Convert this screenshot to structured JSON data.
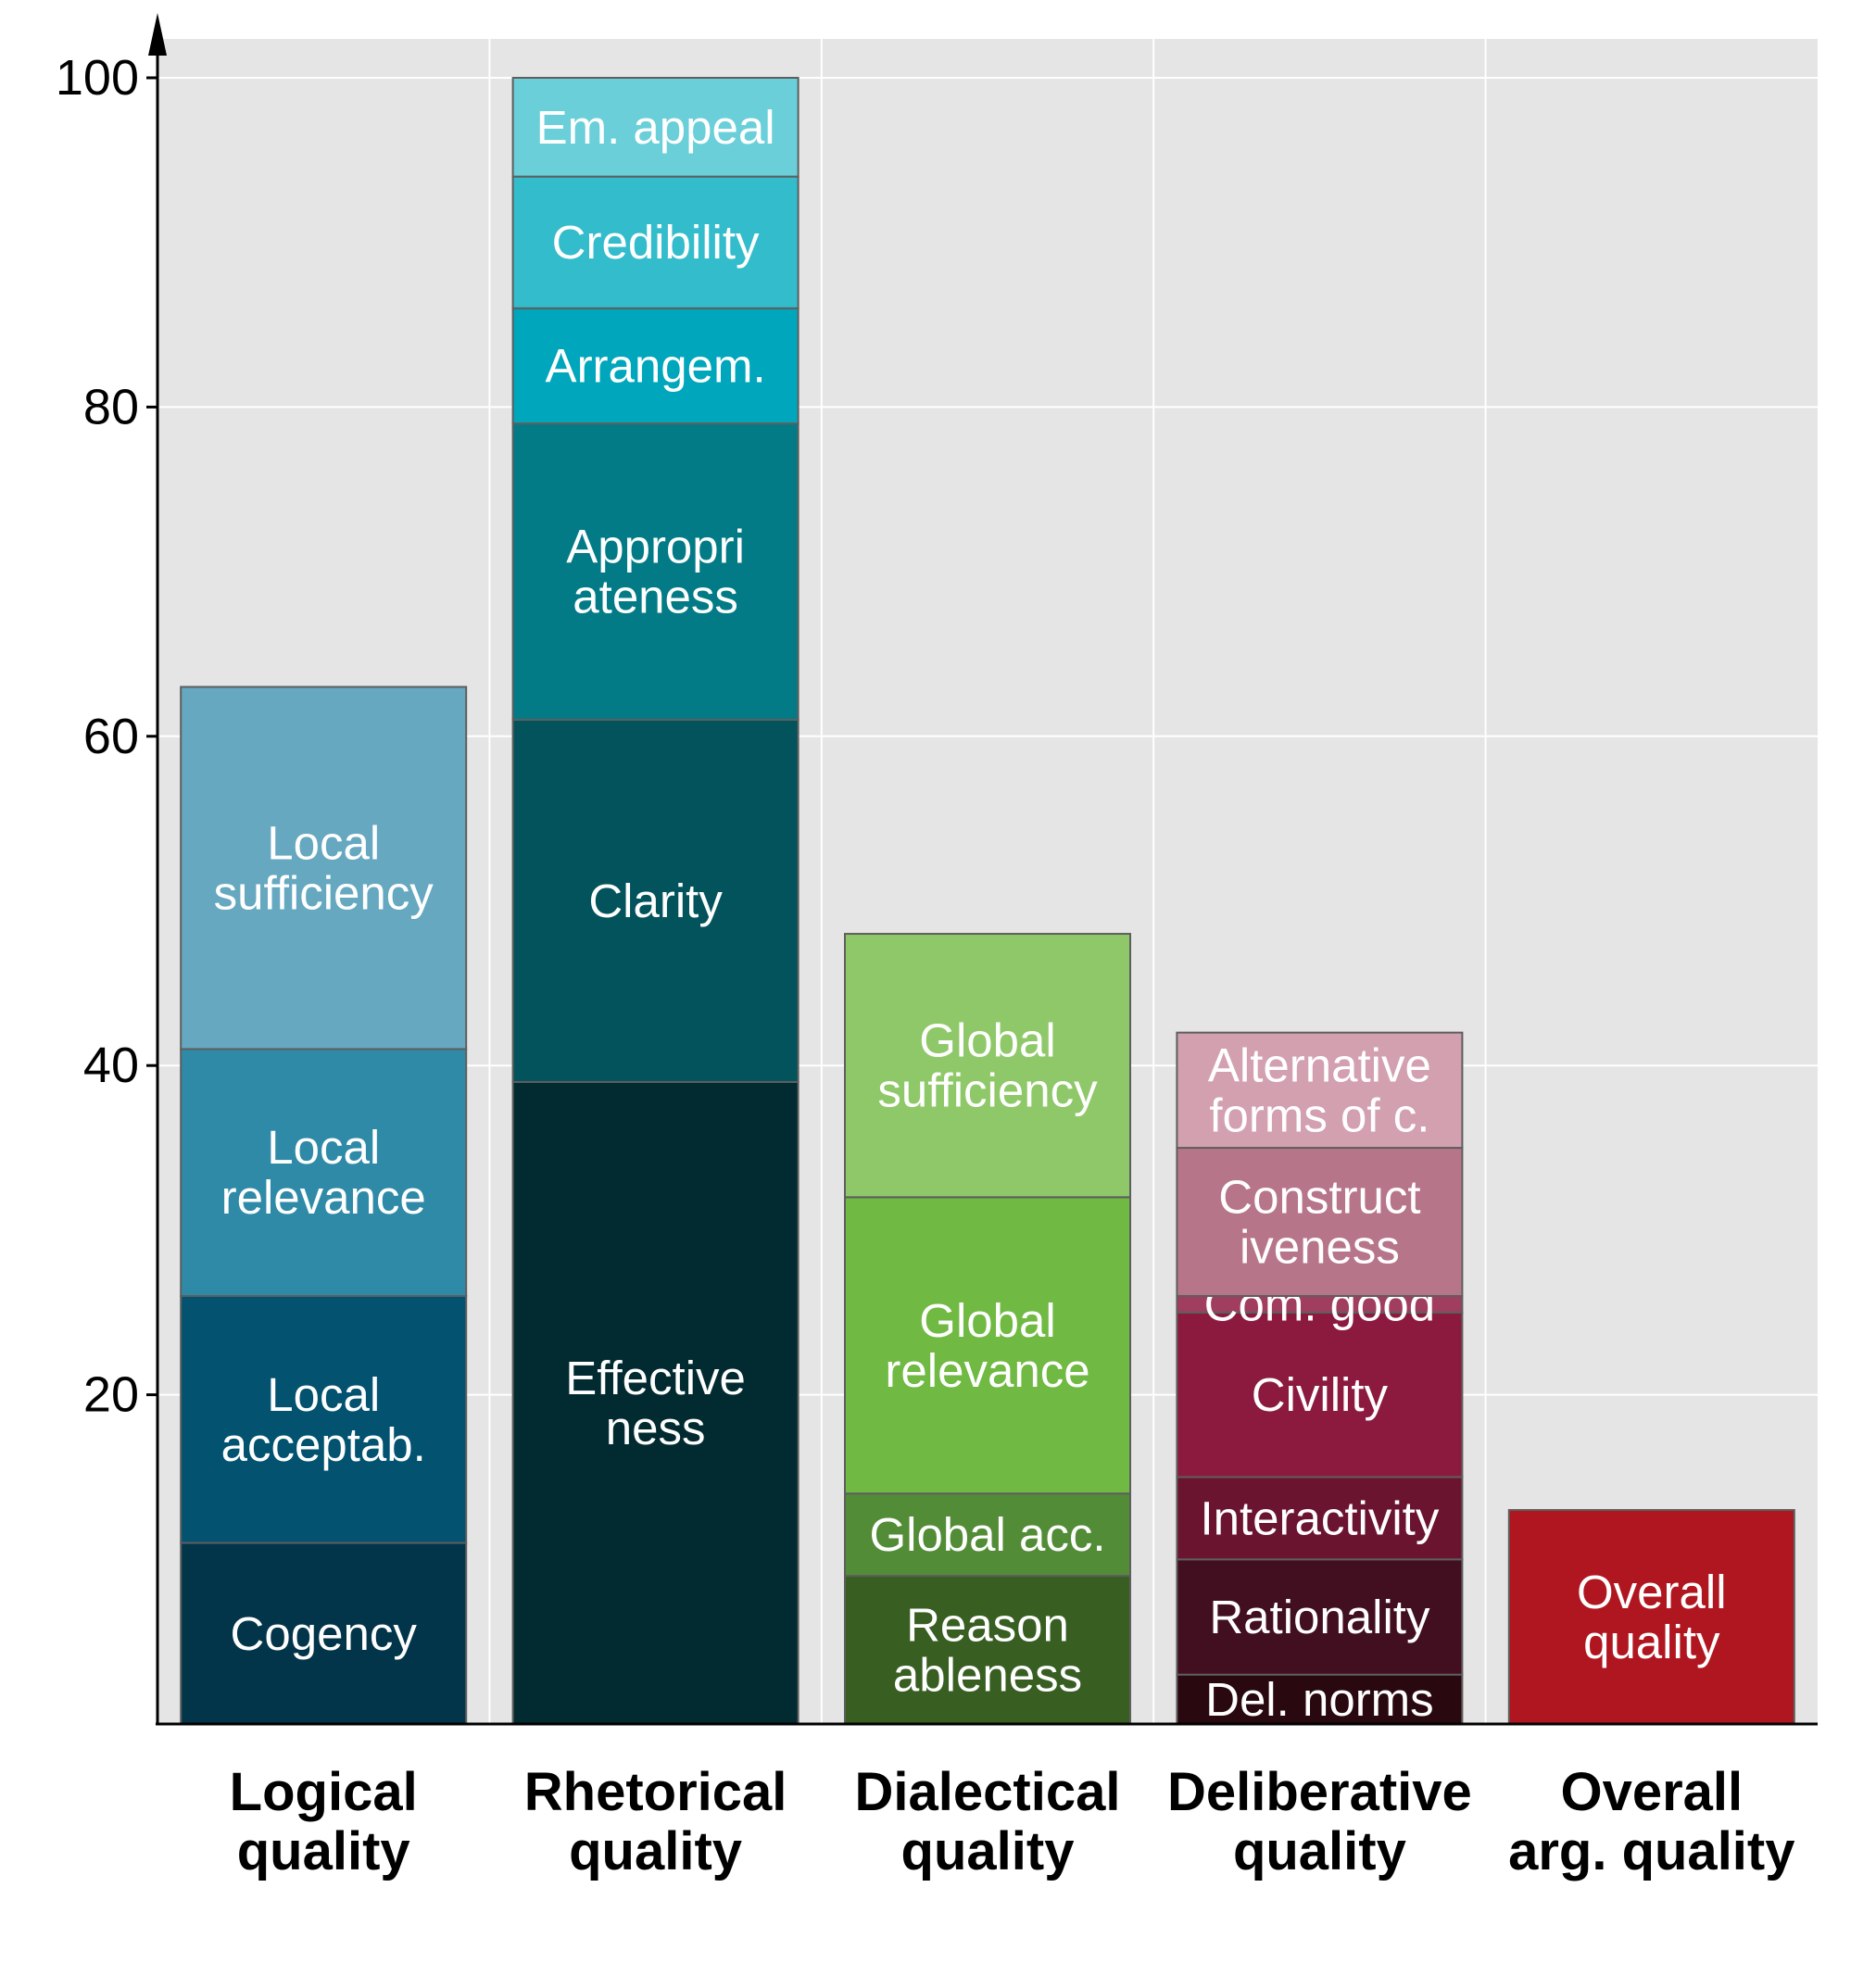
{
  "chart_data": {
    "type": "bar",
    "stacked": true,
    "title": "",
    "xlabel": "",
    "ylabel": "",
    "ylim": [
      0,
      100
    ],
    "yticks": [
      20,
      40,
      60,
      80,
      100
    ],
    "grid": true,
    "legend": "none",
    "categories": [
      [
        "Logical",
        "quality"
      ],
      [
        "Rhetorical",
        "quality"
      ],
      [
        "Dialectical",
        "quality"
      ],
      [
        "Deliberative",
        "quality"
      ],
      [
        "Overall",
        "arg. quality"
      ]
    ],
    "bars": [
      {
        "segments": [
          {
            "label": [
              "Cogency"
            ],
            "value": 11,
            "color": "#03354a"
          },
          {
            "label": [
              "Local",
              "acceptab."
            ],
            "value": 15,
            "color": "#025270"
          },
          {
            "label": [
              "Local",
              "relevance"
            ],
            "value": 15,
            "color": "#2f8aa8"
          },
          {
            "label": [
              "Local",
              "sufficiency"
            ],
            "value": 22,
            "color": "#65a8c0"
          }
        ]
      },
      {
        "segments": [
          {
            "label": [
              "Effective",
              "ness"
            ],
            "value": 39,
            "color": "#022b31"
          },
          {
            "label": [
              "Clarity"
            ],
            "value": 22,
            "color": "#03535c"
          },
          {
            "label": [
              "Appropri",
              "ateness"
            ],
            "value": 18,
            "color": "#027b87"
          },
          {
            "label": [
              "Arrangem."
            ],
            "value": 7,
            "color": "#00a6bb"
          },
          {
            "label": [
              "Credibility"
            ],
            "value": 8,
            "color": "#33bccb"
          },
          {
            "label": [
              "Em. appeal"
            ],
            "value": 6,
            "color": "#6acfd9"
          }
        ]
      },
      {
        "segments": [
          {
            "label": [
              "Reason",
              "ableness"
            ],
            "value": 9,
            "color": "#385e22"
          },
          {
            "label": [
              "Global acc."
            ],
            "value": 5,
            "color": "#528c36"
          },
          {
            "label": [
              "Global",
              "relevance"
            ],
            "value": 18,
            "color": "#70b943"
          },
          {
            "label": [
              "Global",
              "sufficiency"
            ],
            "value": 16,
            "color": "#8fc869"
          }
        ]
      },
      {
        "segments": [
          {
            "label": [
              "Del. norms"
            ],
            "value": 3,
            "color": "#2a0810"
          },
          {
            "label": [
              "Rationality"
            ],
            "value": 7,
            "color": "#420f20"
          },
          {
            "label": [
              "Interactivity"
            ],
            "value": 5,
            "color": "#6a1430"
          },
          {
            "label": [
              "Civility"
            ],
            "value": 10,
            "color": "#8b1a3e"
          },
          {
            "label": [
              "Com. good"
            ],
            "value": 1,
            "color": "#a13d5e"
          },
          {
            "label": [
              "Construct",
              "iveness"
            ],
            "value": 9,
            "color": "#b77589"
          },
          {
            "label": [
              "Alternative",
              "forms of c."
            ],
            "value": 7,
            "color": "#d3a0b0"
          }
        ]
      },
      {
        "segments": [
          {
            "label": [
              "Overall",
              "quality"
            ],
            "value": 13,
            "color": "#b0161f"
          }
        ]
      }
    ]
  }
}
